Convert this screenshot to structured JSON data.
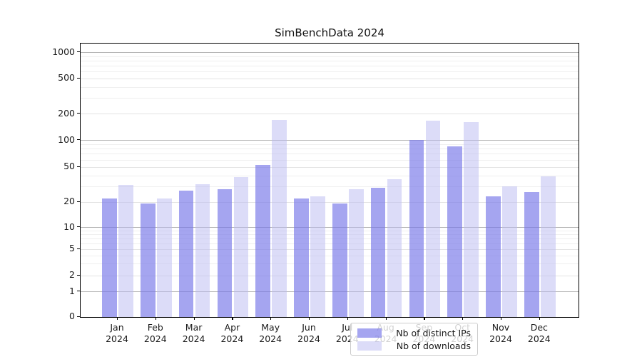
{
  "title": "SimBenchData 2024",
  "chart_data": {
    "type": "bar",
    "title": "SimBenchData 2024",
    "categories": [
      "Jan 2024",
      "Feb 2024",
      "Mar 2024",
      "Apr 2024",
      "May 2024",
      "Jun 2024",
      "Jul 2024",
      "Aug 2024",
      "Sep 2024",
      "Oct 2024",
      "Nov 2024",
      "Dec 2024"
    ],
    "series": [
      {
        "name": "Nb of distinct IPs",
        "color": "#a5a5f0",
        "values": [
          22,
          19,
          27,
          28,
          52,
          22,
          19,
          29,
          100,
          85,
          23,
          26
        ]
      },
      {
        "name": "Nb of downloads",
        "color": "#dcdcf8",
        "values": [
          31,
          22,
          32,
          38,
          170,
          23,
          28,
          36,
          165,
          160,
          30,
          39
        ]
      }
    ],
    "y_axis": {
      "scale": "symlog",
      "ticks": [
        0,
        1,
        2,
        5,
        10,
        20,
        50,
        100,
        200,
        500,
        1000
      ]
    },
    "x_axis": {
      "tick_year": "2024"
    },
    "grid": true,
    "legend_position": "lower center inside"
  }
}
